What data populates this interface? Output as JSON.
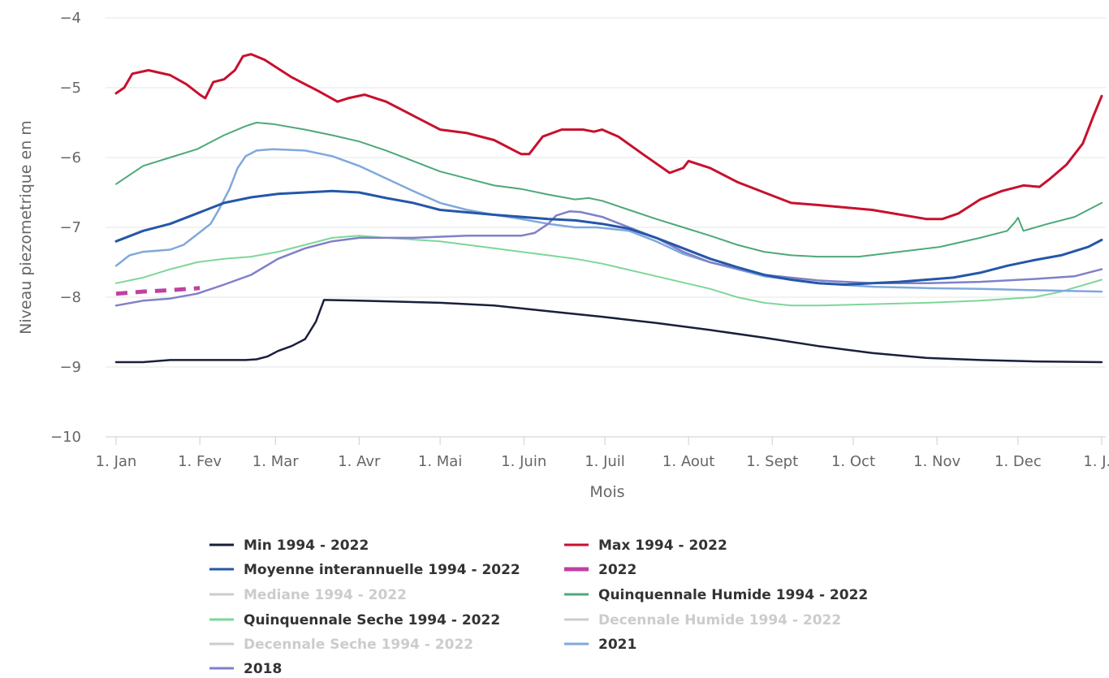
{
  "chart_data": {
    "type": "line",
    "title": "",
    "xlabel": "Mois",
    "ylabel": "Niveau piezometrique en m",
    "ylim": [
      -10,
      -4
    ],
    "yticks": [
      -10,
      -9,
      -8,
      -7,
      -6,
      -5,
      -4
    ],
    "xlim": [
      0,
      365
    ],
    "x_tick_labels": [
      "1. Jan",
      "1. Fev",
      "1. Mar",
      "1. Avr",
      "1. Mai",
      "1. Juin",
      "1. Juil",
      "1. Aout",
      "1. Sept",
      "1. Oct",
      "1. Nov",
      "1. Dec",
      "1. J..."
    ],
    "x_tick_days": [
      0,
      31,
      59,
      90,
      120,
      151,
      181,
      212,
      243,
      273,
      304,
      334,
      365
    ],
    "grid": true,
    "legend_position": "bottom",
    "series": [
      {
        "name": "Min 1994 - 2022",
        "color": "#1a1f3a",
        "width": 2.5,
        "hidden": false,
        "dash": "",
        "points": [
          [
            0,
            -8.93
          ],
          [
            10,
            -8.93
          ],
          [
            20,
            -8.9
          ],
          [
            40,
            -8.9
          ],
          [
            48,
            -8.9
          ],
          [
            52,
            -8.89
          ],
          [
            56,
            -8.85
          ],
          [
            60,
            -8.77
          ],
          [
            65,
            -8.7
          ],
          [
            70,
            -8.6
          ],
          [
            74,
            -8.35
          ],
          [
            77,
            -8.04
          ],
          [
            90,
            -8.05
          ],
          [
            120,
            -8.08
          ],
          [
            140,
            -8.12
          ],
          [
            160,
            -8.2
          ],
          [
            180,
            -8.28
          ],
          [
            200,
            -8.37
          ],
          [
            220,
            -8.47
          ],
          [
            240,
            -8.58
          ],
          [
            260,
            -8.7
          ],
          [
            280,
            -8.8
          ],
          [
            300,
            -8.87
          ],
          [
            320,
            -8.9
          ],
          [
            340,
            -8.92
          ],
          [
            365,
            -8.93
          ]
        ]
      },
      {
        "name": "Max 1994 - 2022",
        "color": "#c8102e",
        "width": 3,
        "hidden": false,
        "dash": "",
        "points": [
          [
            0,
            -5.08
          ],
          [
            3,
            -5.0
          ],
          [
            6,
            -4.8
          ],
          [
            12,
            -4.75
          ],
          [
            20,
            -4.82
          ],
          [
            26,
            -4.95
          ],
          [
            31,
            -5.1
          ],
          [
            33,
            -5.15
          ],
          [
            36,
            -4.92
          ],
          [
            40,
            -4.88
          ],
          [
            44,
            -4.75
          ],
          [
            47,
            -4.55
          ],
          [
            50,
            -4.52
          ],
          [
            55,
            -4.6
          ],
          [
            65,
            -4.85
          ],
          [
            75,
            -5.05
          ],
          [
            82,
            -5.2
          ],
          [
            86,
            -5.15
          ],
          [
            92,
            -5.1
          ],
          [
            100,
            -5.2
          ],
          [
            110,
            -5.4
          ],
          [
            120,
            -5.6
          ],
          [
            130,
            -5.65
          ],
          [
            140,
            -5.75
          ],
          [
            150,
            -5.95
          ],
          [
            153,
            -5.95
          ],
          [
            158,
            -5.7
          ],
          [
            165,
            -5.6
          ],
          [
            173,
            -5.6
          ],
          [
            177,
            -5.63
          ],
          [
            180,
            -5.6
          ],
          [
            186,
            -5.7
          ],
          [
            195,
            -5.95
          ],
          [
            205,
            -6.22
          ],
          [
            210,
            -6.15
          ],
          [
            212,
            -6.05
          ],
          [
            220,
            -6.15
          ],
          [
            230,
            -6.35
          ],
          [
            240,
            -6.5
          ],
          [
            250,
            -6.65
          ],
          [
            260,
            -6.68
          ],
          [
            280,
            -6.75
          ],
          [
            300,
            -6.88
          ],
          [
            306,
            -6.88
          ],
          [
            312,
            -6.8
          ],
          [
            320,
            -6.6
          ],
          [
            328,
            -6.48
          ],
          [
            336,
            -6.4
          ],
          [
            342,
            -6.42
          ],
          [
            346,
            -6.3
          ],
          [
            352,
            -6.1
          ],
          [
            358,
            -5.8
          ],
          [
            362,
            -5.4
          ],
          [
            365,
            -5.12
          ]
        ]
      },
      {
        "name": "Moyenne interannuelle 1994 - 2022",
        "color": "#2457a8",
        "width": 3,
        "hidden": false,
        "dash": "",
        "points": [
          [
            0,
            -7.2
          ],
          [
            10,
            -7.05
          ],
          [
            20,
            -6.95
          ],
          [
            30,
            -6.8
          ],
          [
            40,
            -6.65
          ],
          [
            50,
            -6.57
          ],
          [
            60,
            -6.52
          ],
          [
            70,
            -6.5
          ],
          [
            80,
            -6.48
          ],
          [
            90,
            -6.5
          ],
          [
            100,
            -6.58
          ],
          [
            110,
            -6.65
          ],
          [
            120,
            -6.75
          ],
          [
            140,
            -6.82
          ],
          [
            160,
            -6.88
          ],
          [
            170,
            -6.9
          ],
          [
            180,
            -6.95
          ],
          [
            190,
            -7.02
          ],
          [
            200,
            -7.15
          ],
          [
            210,
            -7.3
          ],
          [
            220,
            -7.45
          ],
          [
            230,
            -7.57
          ],
          [
            240,
            -7.68
          ],
          [
            250,
            -7.75
          ],
          [
            260,
            -7.8
          ],
          [
            270,
            -7.82
          ],
          [
            280,
            -7.8
          ],
          [
            290,
            -7.78
          ],
          [
            300,
            -7.75
          ],
          [
            310,
            -7.72
          ],
          [
            320,
            -7.65
          ],
          [
            330,
            -7.55
          ],
          [
            340,
            -7.47
          ],
          [
            350,
            -7.4
          ],
          [
            360,
            -7.28
          ],
          [
            365,
            -7.18
          ]
        ]
      },
      {
        "name": "2022",
        "color": "#c040a0",
        "width": 5,
        "hidden": false,
        "dash": "14,10",
        "points": [
          [
            0,
            -7.95
          ],
          [
            10,
            -7.92
          ],
          [
            20,
            -7.9
          ],
          [
            31,
            -7.87
          ]
        ]
      },
      {
        "name": "Mediane 1994 - 2022",
        "color": "#c8c8c8",
        "width": 1.5,
        "hidden": true,
        "dash": "",
        "points": []
      },
      {
        "name": "Quinquennale Humide 1994 - 2022",
        "color": "#4ea87a",
        "width": 2,
        "hidden": false,
        "dash": "",
        "points": [
          [
            0,
            -6.38
          ],
          [
            10,
            -6.12
          ],
          [
            20,
            -6.0
          ],
          [
            30,
            -5.88
          ],
          [
            40,
            -5.68
          ],
          [
            48,
            -5.55
          ],
          [
            52,
            -5.5
          ],
          [
            58,
            -5.52
          ],
          [
            70,
            -5.6
          ],
          [
            80,
            -5.68
          ],
          [
            90,
            -5.77
          ],
          [
            100,
            -5.9
          ],
          [
            110,
            -6.05
          ],
          [
            120,
            -6.2
          ],
          [
            130,
            -6.3
          ],
          [
            140,
            -6.4
          ],
          [
            150,
            -6.45
          ],
          [
            160,
            -6.53
          ],
          [
            170,
            -6.6
          ],
          [
            175,
            -6.58
          ],
          [
            180,
            -6.62
          ],
          [
            190,
            -6.75
          ],
          [
            200,
            -6.88
          ],
          [
            210,
            -7.0
          ],
          [
            220,
            -7.12
          ],
          [
            230,
            -7.25
          ],
          [
            240,
            -7.35
          ],
          [
            250,
            -7.4
          ],
          [
            260,
            -7.42
          ],
          [
            275,
            -7.42
          ],
          [
            290,
            -7.35
          ],
          [
            305,
            -7.28
          ],
          [
            320,
            -7.15
          ],
          [
            330,
            -7.05
          ],
          [
            333,
            -6.92
          ],
          [
            334,
            -6.86
          ],
          [
            336,
            -7.05
          ],
          [
            345,
            -6.95
          ],
          [
            355,
            -6.85
          ],
          [
            365,
            -6.65
          ]
        ]
      },
      {
        "name": "Quinquennale Seche 1994 - 2022",
        "color": "#7ed69a",
        "width": 2,
        "hidden": false,
        "dash": "",
        "points": [
          [
            0,
            -7.8
          ],
          [
            10,
            -7.72
          ],
          [
            20,
            -7.6
          ],
          [
            30,
            -7.5
          ],
          [
            40,
            -7.45
          ],
          [
            50,
            -7.42
          ],
          [
            60,
            -7.35
          ],
          [
            70,
            -7.25
          ],
          [
            80,
            -7.15
          ],
          [
            90,
            -7.12
          ],
          [
            100,
            -7.15
          ],
          [
            120,
            -7.2
          ],
          [
            140,
            -7.3
          ],
          [
            160,
            -7.4
          ],
          [
            170,
            -7.45
          ],
          [
            180,
            -7.52
          ],
          [
            200,
            -7.7
          ],
          [
            220,
            -7.88
          ],
          [
            230,
            -8.0
          ],
          [
            240,
            -8.08
          ],
          [
            250,
            -8.12
          ],
          [
            260,
            -8.12
          ],
          [
            280,
            -8.1
          ],
          [
            300,
            -8.08
          ],
          [
            320,
            -8.05
          ],
          [
            340,
            -8.0
          ],
          [
            350,
            -7.92
          ],
          [
            365,
            -7.75
          ]
        ]
      },
      {
        "name": "Decennale Humide 1994 - 2022",
        "color": "#d0d0d0",
        "width": 1.5,
        "hidden": true,
        "dash": "",
        "points": []
      },
      {
        "name": "Decennale Seche 1994 - 2022",
        "color": "#d8d8d8",
        "width": 1.5,
        "hidden": true,
        "dash": "",
        "points": []
      },
      {
        "name": "2021",
        "color": "#7fa8dc",
        "width": 2.5,
        "hidden": false,
        "dash": "",
        "points": [
          [
            0,
            -7.55
          ],
          [
            5,
            -7.4
          ],
          [
            10,
            -7.35
          ],
          [
            20,
            -7.32
          ],
          [
            25,
            -7.25
          ],
          [
            30,
            -7.1
          ],
          [
            35,
            -6.95
          ],
          [
            38,
            -6.75
          ],
          [
            42,
            -6.45
          ],
          [
            45,
            -6.15
          ],
          [
            48,
            -5.98
          ],
          [
            52,
            -5.9
          ],
          [
            58,
            -5.88
          ],
          [
            70,
            -5.9
          ],
          [
            80,
            -5.98
          ],
          [
            90,
            -6.12
          ],
          [
            100,
            -6.3
          ],
          [
            110,
            -6.48
          ],
          [
            120,
            -6.65
          ],
          [
            130,
            -6.75
          ],
          [
            140,
            -6.82
          ],
          [
            150,
            -6.88
          ],
          [
            160,
            -6.95
          ],
          [
            170,
            -7.0
          ],
          [
            178,
            -7.0
          ],
          [
            190,
            -7.05
          ],
          [
            200,
            -7.2
          ],
          [
            210,
            -7.38
          ],
          [
            220,
            -7.5
          ],
          [
            230,
            -7.6
          ],
          [
            240,
            -7.7
          ],
          [
            250,
            -7.75
          ],
          [
            260,
            -7.8
          ],
          [
            280,
            -7.85
          ],
          [
            300,
            -7.87
          ],
          [
            320,
            -7.88
          ],
          [
            340,
            -7.9
          ],
          [
            365,
            -7.92
          ]
        ]
      },
      {
        "name": "2018",
        "color": "#8080c8",
        "width": 2.5,
        "hidden": false,
        "dash": "",
        "points": [
          [
            0,
            -8.12
          ],
          [
            10,
            -8.05
          ],
          [
            20,
            -8.02
          ],
          [
            30,
            -7.95
          ],
          [
            40,
            -7.82
          ],
          [
            50,
            -7.68
          ],
          [
            60,
            -7.45
          ],
          [
            70,
            -7.3
          ],
          [
            80,
            -7.2
          ],
          [
            90,
            -7.15
          ],
          [
            110,
            -7.15
          ],
          [
            130,
            -7.12
          ],
          [
            150,
            -7.12
          ],
          [
            155,
            -7.08
          ],
          [
            160,
            -6.95
          ],
          [
            163,
            -6.83
          ],
          [
            168,
            -6.77
          ],
          [
            172,
            -6.78
          ],
          [
            180,
            -6.85
          ],
          [
            190,
            -7.0
          ],
          [
            200,
            -7.15
          ],
          [
            210,
            -7.35
          ],
          [
            220,
            -7.5
          ],
          [
            240,
            -7.68
          ],
          [
            260,
            -7.76
          ],
          [
            280,
            -7.8
          ],
          [
            300,
            -7.8
          ],
          [
            320,
            -7.78
          ],
          [
            340,
            -7.74
          ],
          [
            355,
            -7.7
          ],
          [
            365,
            -7.6
          ]
        ]
      }
    ]
  }
}
